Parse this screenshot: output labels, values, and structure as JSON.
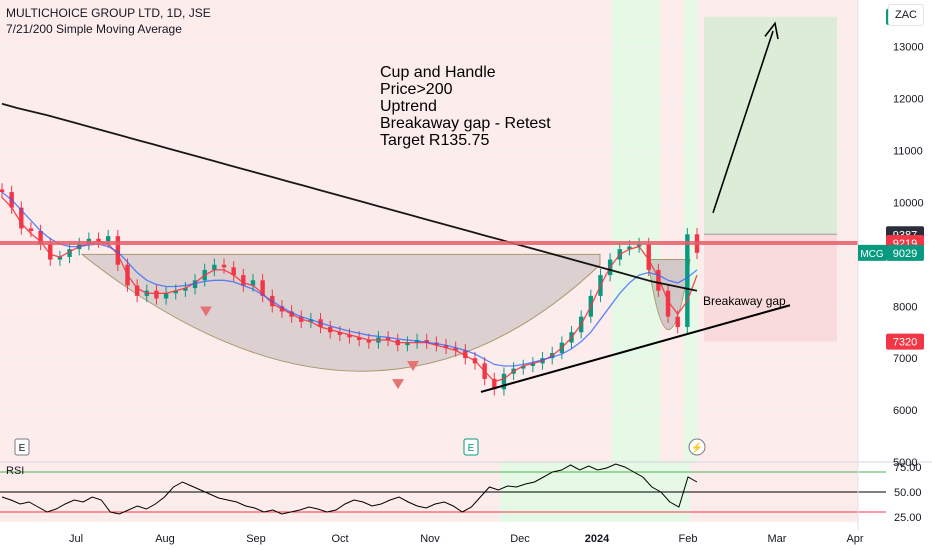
{
  "header": {
    "symbol_line": "MULTICHOICE GROUP LTD, 1D, JSE",
    "indicator_line": "7/21/200 Simple Moving Average",
    "currency": "ZAC"
  },
  "annotation": {
    "lines": [
      "Cup and Handle",
      "Price>200",
      "Uptrend",
      "Breakaway gap - Retest",
      "Target R135.75"
    ],
    "gap_label": "Breakaway gap"
  },
  "badges": {
    "e1": "E",
    "e2": "E",
    "flash": "⚡"
  },
  "chart_data": [
    {
      "type": "candlestick",
      "x_ticks": [
        "Jul",
        "Aug",
        "Sep",
        "Oct",
        "Nov",
        "Dec",
        "2024",
        "Feb",
        "Mar",
        "Apr"
      ],
      "y_ticks": [
        5000,
        6000,
        7000,
        8000,
        9000,
        10000,
        11000,
        12000,
        13000
      ],
      "ylim": [
        5000,
        13900
      ],
      "price_labels": [
        {
          "text": "13575",
          "value": 13575,
          "color": "#089981"
        },
        {
          "text": "9387",
          "value": 9387,
          "color": "#2a2e39"
        },
        {
          "text": "9219",
          "value": 9219,
          "color": "#f23645"
        },
        {
          "text": "9029",
          "value": 9029,
          "color": "#089981"
        },
        {
          "text": "7320",
          "value": 7320,
          "color": "#f23645"
        }
      ],
      "ticker_label": "MCG",
      "series": [
        {
          "name": "Close",
          "values": [
            10200,
            9900,
            9500,
            9450,
            9200,
            8900,
            8950,
            9100,
            9200,
            9300,
            9250,
            9350,
            8800,
            8400,
            8200,
            8300,
            8150,
            8250,
            8300,
            8350,
            8500,
            8700,
            8800,
            8750,
            8600,
            8400,
            8500,
            8200,
            8000,
            7900,
            7800,
            7700,
            7750,
            7600,
            7500,
            7450,
            7400,
            7350,
            7300,
            7400,
            7350,
            7250,
            7300,
            7350,
            7300,
            7250,
            7200,
            7150,
            7000,
            6900,
            6600,
            6400,
            6700,
            6800,
            6850,
            6900,
            7000,
            7100,
            7300,
            7500,
            7800,
            8200,
            8600,
            8900,
            9100,
            9150,
            9200,
            8700,
            8300,
            7800,
            7600,
            9387,
            9029
          ]
        },
        {
          "name": "SMA 7",
          "values": [
            10100,
            9900,
            9600,
            9400,
            9250,
            9000,
            8950,
            9050,
            9150,
            9200,
            9250,
            9200,
            9000,
            8600,
            8350,
            8250,
            8250,
            8250,
            8300,
            8350,
            8450,
            8600,
            8700,
            8700,
            8600,
            8450,
            8400,
            8250,
            8050,
            7950,
            7850,
            7750,
            7700,
            7600,
            7550,
            7500,
            7450,
            7400,
            7350,
            7350,
            7350,
            7300,
            7300,
            7300,
            7300,
            7250,
            7200,
            7150,
            7050,
            6950,
            6750,
            6550,
            6600,
            6750,
            6850,
            6900,
            6950,
            7050,
            7200,
            7400,
            7650,
            8000,
            8400,
            8750,
            9000,
            9100,
            9150,
            8900,
            8550,
            8100,
            7850,
            8100,
            8600
          ]
        },
        {
          "name": "SMA 21",
          "values": [
            10200,
            10050,
            9850,
            9650,
            9450,
            9300,
            9200,
            9150,
            9150,
            9180,
            9200,
            9150,
            9050,
            8850,
            8650,
            8500,
            8420,
            8380,
            8380,
            8400,
            8440,
            8480,
            8500,
            8500,
            8470,
            8400,
            8330,
            8220,
            8100,
            7980,
            7880,
            7800,
            7740,
            7680,
            7620,
            7570,
            7520,
            7480,
            7440,
            7420,
            7400,
            7370,
            7350,
            7330,
            7310,
            7280,
            7250,
            7200,
            7150,
            7080,
            6980,
            6880,
            6850,
            6850,
            6880,
            6920,
            6970,
            7020,
            7080,
            7180,
            7320,
            7500,
            7750,
            8000,
            8250,
            8450,
            8600,
            8650,
            8600,
            8500,
            8450,
            8550,
            8700
          ]
        },
        {
          "name": "SMA 200",
          "values": [
            11900,
            11820,
            11750,
            11680,
            11600,
            11520,
            11440,
            11360,
            11280,
            11200,
            11120,
            11040,
            10960,
            10880,
            10800,
            10720,
            10640,
            10560,
            10480,
            10400,
            10320,
            10240,
            10160,
            10080,
            10000,
            9920,
            9840,
            9760,
            9680,
            9600,
            9520,
            9440,
            9360,
            9280,
            9200,
            9120,
            9040,
            8960,
            8880,
            8800,
            8720,
            8640,
            8560,
            8480,
            8420,
            8360,
            8300
          ]
        }
      ]
    },
    {
      "type": "line",
      "title": "RSI",
      "y_ticks": [
        "75.00",
        "50.00",
        "25.00"
      ],
      "ylim": [
        20,
        80
      ],
      "levels": [
        70,
        50,
        30
      ],
      "values": [
        45,
        42,
        38,
        40,
        35,
        30,
        33,
        38,
        42,
        40,
        45,
        42,
        30,
        28,
        32,
        36,
        33,
        38,
        45,
        55,
        60,
        56,
        52,
        48,
        44,
        42,
        40,
        36,
        34,
        30,
        32,
        28,
        30,
        32,
        35,
        33,
        30,
        32,
        38,
        42,
        40,
        36,
        38,
        42,
        45,
        40,
        36,
        34,
        38,
        40,
        36,
        30,
        35,
        45,
        55,
        52,
        56,
        55,
        58,
        60,
        65,
        70,
        72,
        77,
        72,
        76,
        72,
        74,
        78,
        75,
        70,
        65,
        55,
        50,
        40,
        35,
        65,
        60
      ]
    }
  ]
}
